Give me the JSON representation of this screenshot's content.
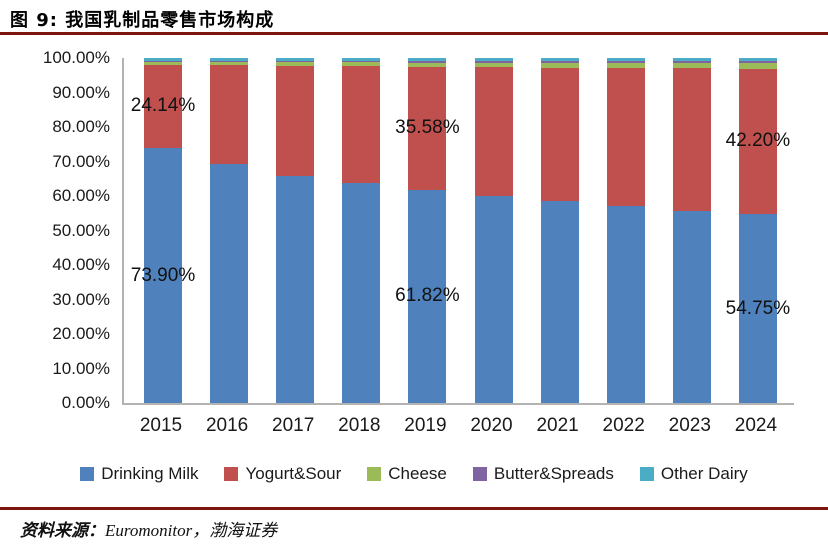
{
  "header": {
    "title": "图 9: 我国乳制品零售市场构成"
  },
  "footer": {
    "source_label": "资料来源：",
    "source_text": "Euromonitor，渤海证券"
  },
  "chart_data": {
    "type": "bar",
    "stacked": true,
    "title": "我国乳制品零售市场构成",
    "xlabel": "",
    "ylabel": "",
    "ylim": [
      0,
      100
    ],
    "grid": false,
    "legend_position": "bottom",
    "categories": [
      "2015",
      "2016",
      "2017",
      "2018",
      "2019",
      "2020",
      "2021",
      "2022",
      "2023",
      "2024"
    ],
    "series": [
      {
        "name": "Drinking Milk",
        "color": "#4F81BD",
        "values": [
          73.9,
          69.3,
          65.7,
          63.7,
          61.82,
          59.9,
          58.5,
          57.0,
          55.6,
          54.75
        ]
      },
      {
        "name": "Yogurt&Sour",
        "color": "#C0504D",
        "values": [
          24.14,
          28.6,
          32.1,
          34.0,
          35.58,
          37.4,
          38.7,
          40.1,
          41.4,
          42.2
        ]
      },
      {
        "name": "Cheese",
        "color": "#9BBB59",
        "values": [
          0.9,
          1.0,
          1.05,
          1.1,
          1.25,
          1.3,
          1.35,
          1.4,
          1.45,
          1.5
        ]
      },
      {
        "name": "Butter&Spreads",
        "color": "#8064A2",
        "values": [
          0.26,
          0.3,
          0.35,
          0.4,
          0.5,
          0.55,
          0.6,
          0.65,
          0.7,
          0.7
        ]
      },
      {
        "name": "Other Dairy",
        "color": "#4BACC6",
        "values": [
          0.8,
          0.8,
          0.8,
          0.8,
          0.85,
          0.85,
          0.85,
          0.85,
          0.85,
          0.85
        ]
      }
    ],
    "y_ticks": [
      "100.00%",
      "90.00%",
      "80.00%",
      "70.00%",
      "60.00%",
      "50.00%",
      "40.00%",
      "30.00%",
      "20.00%",
      "10.00%",
      "0.00%"
    ],
    "annotations": [
      {
        "category": "2015",
        "series": "Yogurt&Sour",
        "text": "24.14%"
      },
      {
        "category": "2015",
        "series": "Drinking Milk",
        "text": "73.90%"
      },
      {
        "category": "2019",
        "series": "Yogurt&Sour",
        "text": "35.58%"
      },
      {
        "category": "2019",
        "series": "Drinking Milk",
        "text": "61.82%"
      },
      {
        "category": "2024",
        "series": "Yogurt&Sour",
        "text": "42.20%"
      },
      {
        "category": "2024",
        "series": "Drinking Milk",
        "text": "54.75%"
      }
    ]
  }
}
